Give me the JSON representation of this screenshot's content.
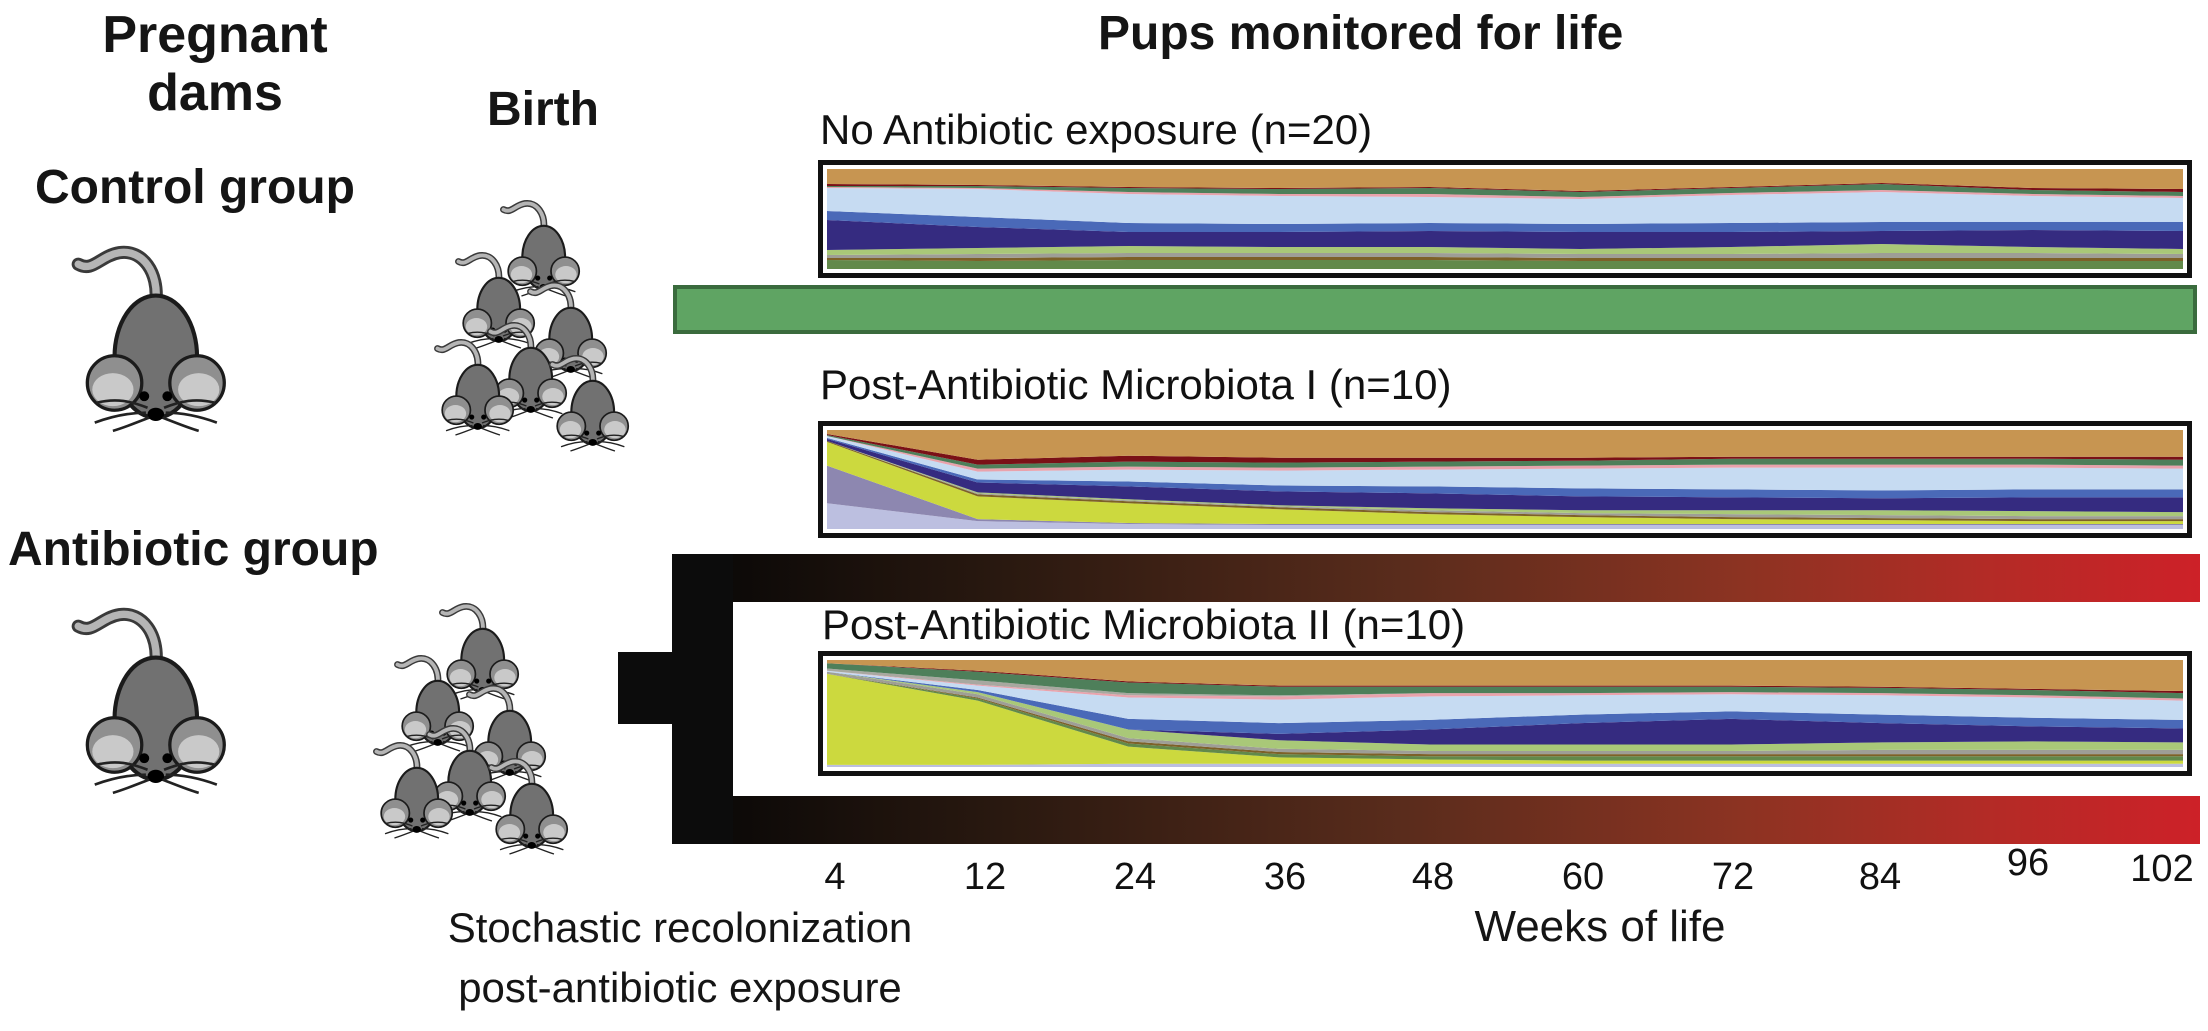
{
  "header": {
    "pregnant_dams_line1": "Pregnant",
    "pregnant_dams_line2": "dams",
    "birth": "Birth",
    "pups_monitored": "Pups monitored for life",
    "control_group": "Control group",
    "antibiotic_group": "Antibiotic group"
  },
  "footer": {
    "stochastic_line1": "Stochastic recolonization",
    "stochastic_line2": "post-antibiotic exposure",
    "axis_label": "Weeks of life"
  },
  "axis": {
    "ticks": [
      "4",
      "12",
      "24",
      "36",
      "48",
      "60",
      "72",
      "84",
      "96",
      "102"
    ]
  },
  "timelines": {
    "control": {
      "color": "#5fa463",
      "border": "#3a6b3d"
    },
    "antibiotic_gradient": [
      "#060606",
      "#2a1910",
      "#5a2c1c",
      "#8c3322",
      "#b32b26",
      "#cd2128"
    ]
  },
  "chart_data": [
    {
      "type": "area-stacked-normalized",
      "title": "No Antibiotic exposure (n=20)",
      "n": 20,
      "xlabel": "Weeks of life",
      "x_weeks": [
        4,
        12,
        24,
        36,
        48,
        60,
        72,
        84,
        96,
        102
      ],
      "series_order": "bottom-to-top",
      "series": [
        {
          "name": "olive-green",
          "color": "#62894a",
          "values": [
            9,
            8,
            9,
            9,
            9,
            8,
            8,
            8,
            8,
            8
          ]
        },
        {
          "name": "brown",
          "color": "#7d6128",
          "values": [
            2,
            3,
            3,
            3,
            3,
            3,
            3,
            3,
            3,
            3
          ]
        },
        {
          "name": "gray",
          "color": "#9e9e96",
          "values": [
            3,
            4,
            4,
            4,
            4,
            4,
            4,
            5,
            5,
            4
          ]
        },
        {
          "name": "light-green",
          "color": "#a9c878",
          "values": [
            5,
            6,
            7,
            6,
            6,
            5,
            7,
            9,
            6,
            5
          ]
        },
        {
          "name": "navy",
          "color": "#352b80",
          "values": [
            30,
            21,
            14,
            15,
            16,
            17,
            15,
            13,
            17,
            18
          ]
        },
        {
          "name": "steel-blue",
          "color": "#4a69b8",
          "values": [
            9,
            10,
            9,
            8,
            8,
            8,
            9,
            9,
            8,
            9
          ]
        },
        {
          "name": "pale-blue",
          "color": "#c6dbf2",
          "values": [
            23,
            28,
            29,
            28,
            26,
            25,
            28,
            30,
            26,
            24
          ]
        },
        {
          "name": "pink",
          "color": "#e9a2ac",
          "values": [
            1,
            1,
            2,
            2,
            3,
            2,
            2,
            2,
            2,
            2
          ]
        },
        {
          "name": "sea-green",
          "color": "#4e7f5a",
          "values": [
            1,
            2,
            4,
            5,
            6,
            5,
            5,
            6,
            4,
            4
          ]
        },
        {
          "name": "dark-red",
          "color": "#7a1016",
          "values": [
            2,
            1,
            1,
            1,
            1,
            1,
            1,
            1,
            2,
            3
          ]
        },
        {
          "name": "tan",
          "color": "#c79551",
          "values": [
            15,
            16,
            18,
            19,
            18,
            22,
            18,
            14,
            19,
            20
          ]
        }
      ]
    },
    {
      "type": "area-stacked-normalized",
      "title": "Post-Antibiotic Microbiota I (n=10)",
      "n": 10,
      "xlabel": "Weeks of life",
      "x_weeks": [
        4,
        12,
        24,
        36,
        48,
        60,
        72,
        84,
        96,
        102
      ],
      "series_order": "bottom-to-top",
      "series": [
        {
          "name": "pale-lavender",
          "color": "#bcbfe0",
          "values": [
            26,
            8,
            5,
            4,
            4,
            4,
            4,
            4,
            4,
            4
          ]
        },
        {
          "name": "gray-purple",
          "color": "#8d87b0",
          "values": [
            38,
            2,
            1,
            1,
            1,
            1,
            1,
            1,
            1,
            1
          ]
        },
        {
          "name": "chartreuse",
          "color": "#ccd93e",
          "values": [
            24,
            23,
            20,
            15,
            10,
            7,
            5,
            4,
            3,
            3
          ]
        },
        {
          "name": "brown",
          "color": "#7d6128",
          "values": [
            1,
            2,
            2,
            2,
            2,
            2,
            2,
            2,
            2,
            2
          ]
        },
        {
          "name": "gray",
          "color": "#9e9e96",
          "values": [
            0,
            1,
            1,
            1,
            2,
            2,
            3,
            3,
            3,
            3
          ]
        },
        {
          "name": "light-green",
          "color": "#a9c878",
          "values": [
            0,
            1,
            1,
            1,
            2,
            3,
            4,
            5,
            5,
            4
          ]
        },
        {
          "name": "navy",
          "color": "#352b80",
          "values": [
            2,
            10,
            13,
            14,
            15,
            14,
            13,
            12,
            14,
            15
          ]
        },
        {
          "name": "steel-blue",
          "color": "#4a69b8",
          "values": [
            1,
            3,
            5,
            6,
            7,
            8,
            8,
            8,
            8,
            8
          ]
        },
        {
          "name": "pale-blue",
          "color": "#c6dbf2",
          "values": [
            2,
            8,
            12,
            15,
            17,
            20,
            22,
            23,
            22,
            21
          ]
        },
        {
          "name": "pink",
          "color": "#e9a2ac",
          "values": [
            0,
            3,
            3,
            3,
            3,
            3,
            3,
            3,
            3,
            3
          ]
        },
        {
          "name": "sea-green",
          "color": "#4e7f5a",
          "values": [
            1,
            4,
            5,
            5,
            5,
            5,
            6,
            6,
            6,
            6
          ]
        },
        {
          "name": "dark-red",
          "color": "#7a1016",
          "values": [
            1,
            5,
            6,
            5,
            4,
            3,
            2,
            2,
            2,
            3
          ]
        },
        {
          "name": "tan",
          "color": "#c79551",
          "values": [
            4,
            30,
            26,
            28,
            28,
            28,
            27,
            27,
            27,
            27
          ]
        }
      ]
    },
    {
      "type": "area-stacked-normalized",
      "title": "Post-Antibiotic Microbiota II (n=10)",
      "n": 10,
      "xlabel": "Weeks of life",
      "x_weeks": [
        4,
        12,
        24,
        36,
        48,
        60,
        72,
        84,
        96,
        102
      ],
      "series_order": "bottom-to-top",
      "series": [
        {
          "name": "pale-lavender",
          "color": "#bcbfe0",
          "values": [
            2,
            2,
            3,
            3,
            3,
            3,
            3,
            3,
            3,
            3
          ]
        },
        {
          "name": "chartreuse",
          "color": "#ccd93e",
          "values": [
            85,
            60,
            16,
            6,
            4,
            3,
            3,
            3,
            3,
            3
          ]
        },
        {
          "name": "olive-green",
          "color": "#62894a",
          "values": [
            0,
            2,
            3,
            3,
            3,
            4,
            4,
            4,
            4,
            4
          ]
        },
        {
          "name": "brown",
          "color": "#7d6128",
          "values": [
            0,
            1,
            2,
            2,
            2,
            2,
            2,
            2,
            2,
            2
          ]
        },
        {
          "name": "gray",
          "color": "#9e9e96",
          "values": [
            2,
            3,
            3,
            3,
            3,
            3,
            3,
            4,
            4,
            4
          ]
        },
        {
          "name": "light-green",
          "color": "#a9c878",
          "values": [
            0,
            2,
            8,
            8,
            6,
            6,
            6,
            7,
            8,
            7
          ]
        },
        {
          "name": "navy",
          "color": "#352b80",
          "values": [
            0,
            0,
            0,
            6,
            14,
            20,
            24,
            18,
            14,
            13
          ]
        },
        {
          "name": "steel-blue",
          "color": "#4a69b8",
          "values": [
            0,
            2,
            10,
            10,
            9,
            8,
            7,
            8,
            8,
            8
          ]
        },
        {
          "name": "pale-blue",
          "color": "#c6dbf2",
          "values": [
            1,
            4,
            20,
            22,
            22,
            18,
            16,
            18,
            19,
            18
          ]
        },
        {
          "name": "pink",
          "color": "#e9a2ac",
          "values": [
            0,
            1,
            2,
            3,
            3,
            2,
            2,
            2,
            2,
            2
          ]
        },
        {
          "name": "gray-stripe",
          "color": "#a8a8a0",
          "values": [
            2,
            4,
            2,
            1,
            0,
            0,
            0,
            0,
            0,
            0
          ]
        },
        {
          "name": "sea-green",
          "color": "#4e7f5a",
          "values": [
            5,
            8,
            10,
            8,
            6,
            6,
            5,
            5,
            5,
            5
          ]
        },
        {
          "name": "dark-red",
          "color": "#7a1016",
          "values": [
            0,
            1,
            1,
            1,
            1,
            1,
            1,
            1,
            1,
            2
          ]
        },
        {
          "name": "tan",
          "color": "#c79551",
          "values": [
            3,
            10,
            20,
            24,
            24,
            24,
            24,
            25,
            27,
            29
          ]
        }
      ]
    }
  ]
}
